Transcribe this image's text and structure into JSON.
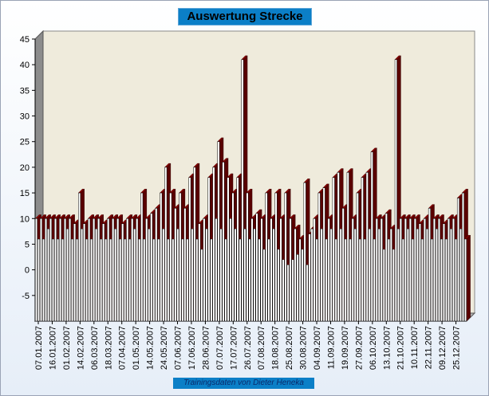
{
  "title": "Auswertung Strecke",
  "footer": "Trainingsdaten von Dieter Heneka",
  "colors": {
    "bar_top": "#8b0000",
    "bar_side": "#5a0000",
    "bar_front": "#ffffff",
    "wall": "#efebdc",
    "floor": "#b0b0b0"
  },
  "chart_data": {
    "type": "bar",
    "title": "Auswertung Strecke",
    "xlabel": "",
    "ylabel": "",
    "ylim": [
      -10,
      45
    ],
    "yticks": [
      -5,
      0,
      5,
      10,
      15,
      20,
      25,
      30,
      35,
      40,
      45
    ],
    "grid": false,
    "legend": "none",
    "x_tick_labels": [
      "07.01.2007",
      "16.01.2007",
      "01.02.2007",
      "14.02.2007",
      "06.03.2007",
      "18.03.2007",
      "07.04.2007",
      "01.05.2007",
      "14.05.2007",
      "24.05.2007",
      "07.06.2007",
      "17.06.2007",
      "28.06.2007",
      "07.07.2007",
      "17.07.2007",
      "26.07.2007",
      "07.08.2007",
      "18.08.2007",
      "25.08.2007",
      "30.08.2007",
      "04.09.2007",
      "11.09.2007",
      "19.09.2007",
      "27.09.2007",
      "06.10.2007",
      "13.10.2007",
      "21.10.2007",
      "10.11.2007",
      "22.11.2007",
      "09.12.2007",
      "25.12.2007"
    ],
    "values": [
      10,
      6,
      10,
      6,
      10,
      8,
      10,
      6,
      10,
      6,
      10,
      6,
      10,
      8,
      10,
      6,
      9,
      6,
      15,
      8,
      9,
      6,
      10,
      6,
      10,
      8,
      10,
      6,
      9,
      6,
      10,
      6,
      10,
      8,
      10,
      6,
      9,
      6,
      10,
      6,
      10,
      8,
      10,
      6,
      15,
      6,
      10,
      8,
      11,
      6,
      12,
      6,
      15,
      8,
      20,
      6,
      15,
      6,
      12,
      8,
      15,
      6,
      12,
      6,
      18,
      8,
      20,
      6,
      9,
      4,
      10,
      8,
      18,
      6,
      20,
      10,
      25,
      8,
      21,
      6,
      18,
      10,
      15,
      8,
      18,
      6,
      41,
      8,
      15,
      6,
      10,
      8,
      11,
      6,
      10,
      4,
      15,
      6,
      10,
      8,
      15,
      4,
      10,
      2,
      15,
      1,
      10,
      2,
      8,
      3,
      6,
      4,
      17,
      1,
      7,
      8,
      10,
      6,
      15,
      8,
      16,
      6,
      10,
      8,
      18,
      6,
      19,
      8,
      12,
      6,
      19,
      6,
      10,
      8,
      15,
      6,
      18,
      6,
      19,
      8,
      23,
      6,
      10,
      8,
      10,
      4,
      11,
      6,
      8,
      4,
      41,
      8,
      10,
      6,
      10,
      8,
      10,
      6,
      10,
      8,
      9,
      6,
      10,
      8,
      12,
      6,
      10,
      8,
      10,
      6,
      9,
      6,
      10,
      8,
      10,
      6,
      14,
      8,
      15,
      6
    ]
  }
}
